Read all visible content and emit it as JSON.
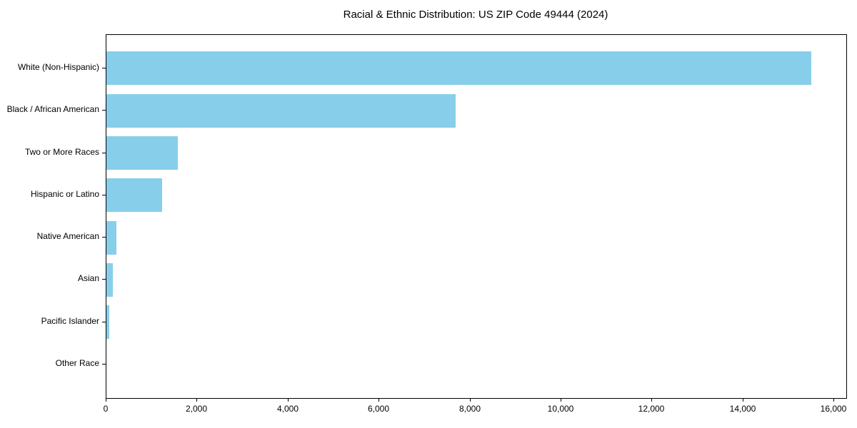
{
  "title": "Racial & Ethnic Distribution: US ZIP Code 49444 (2024)",
  "chart_data": {
    "type": "bar",
    "orientation": "horizontal",
    "title": "Racial & Ethnic Distribution: US ZIP Code 49444 (2024)",
    "categories": [
      "White (Non-Hispanic)",
      "Black / African American",
      "Two or More Races",
      "Hispanic or Latino",
      "Native American",
      "Asian",
      "Pacific Islander",
      "Other Race"
    ],
    "values": [
      15500,
      7680,
      1570,
      1230,
      215,
      140,
      60,
      0
    ],
    "xlabel": "",
    "ylabel": "",
    "xlim": [
      0,
      16265
    ],
    "xticks": [
      0,
      2000,
      4000,
      6000,
      8000,
      10000,
      12000,
      14000,
      16000
    ],
    "xtick_labels": [
      "0",
      "2,000",
      "4,000",
      "6,000",
      "8,000",
      "10,000",
      "12,000",
      "14,000",
      "16,000"
    ],
    "grid": false,
    "legend": null,
    "bar_color": "#87CEEB",
    "background_color": "#ffffff",
    "axis_color": "#000000",
    "text_color": "#000000"
  }
}
